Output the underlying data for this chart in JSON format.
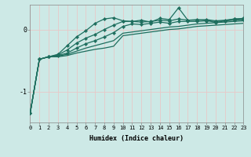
{
  "xlabel": "Humidex (Indice chaleur)",
  "xlim": [
    0,
    23
  ],
  "ylim": [
    -1.5,
    0.4
  ],
  "yticks": [
    -1,
    0
  ],
  "xticks": [
    0,
    1,
    2,
    3,
    4,
    5,
    6,
    7,
    8,
    9,
    10,
    11,
    12,
    13,
    14,
    15,
    16,
    17,
    18,
    19,
    20,
    21,
    22,
    23
  ],
  "background_color": "#cde9e6",
  "line_color": "#1e6e5e",
  "grid_color": "#e8c8c8",
  "lines": [
    {
      "y": [
        -1.35,
        -0.48,
        -0.44,
        -0.44,
        -0.42,
        -0.38,
        -0.35,
        -0.32,
        -0.3,
        -0.27,
        -0.1,
        -0.08,
        -0.06,
        -0.04,
        -0.02,
        0.0,
        0.01,
        0.03,
        0.05,
        0.06,
        0.07,
        0.08,
        0.09,
        0.1
      ],
      "marker": false
    },
    {
      "y": [
        -1.35,
        -0.48,
        -0.44,
        -0.43,
        -0.4,
        -0.35,
        -0.3,
        -0.26,
        -0.22,
        -0.18,
        -0.06,
        -0.04,
        -0.02,
        0.0,
        0.02,
        0.04,
        0.05,
        0.07,
        0.09,
        0.1,
        0.11,
        0.12,
        0.13,
        0.14
      ],
      "marker": false
    },
    {
      "y": [
        -1.35,
        -0.48,
        -0.44,
        -0.42,
        -0.38,
        -0.3,
        -0.23,
        -0.18,
        -0.12,
        -0.05,
        0.05,
        0.09,
        0.08,
        0.1,
        0.12,
        0.1,
        0.13,
        0.13,
        0.13,
        0.14,
        0.13,
        0.14,
        0.15,
        0.16
      ],
      "marker": true
    },
    {
      "y": [
        -1.35,
        -0.48,
        -0.44,
        -0.41,
        -0.33,
        -0.22,
        -0.14,
        -0.08,
        0.0,
        0.07,
        0.13,
        0.13,
        0.12,
        0.13,
        0.15,
        0.14,
        0.17,
        0.15,
        0.15,
        0.16,
        0.14,
        0.15,
        0.17,
        0.18
      ],
      "marker": true
    },
    {
      "y": [
        -1.35,
        -0.48,
        -0.44,
        -0.4,
        -0.26,
        -0.12,
        -0.02,
        0.1,
        0.17,
        0.19,
        0.14,
        0.13,
        0.15,
        0.12,
        0.18,
        0.16,
        0.35,
        0.15,
        0.16,
        0.15,
        0.11,
        0.14,
        0.17,
        0.17
      ],
      "marker": true
    }
  ]
}
